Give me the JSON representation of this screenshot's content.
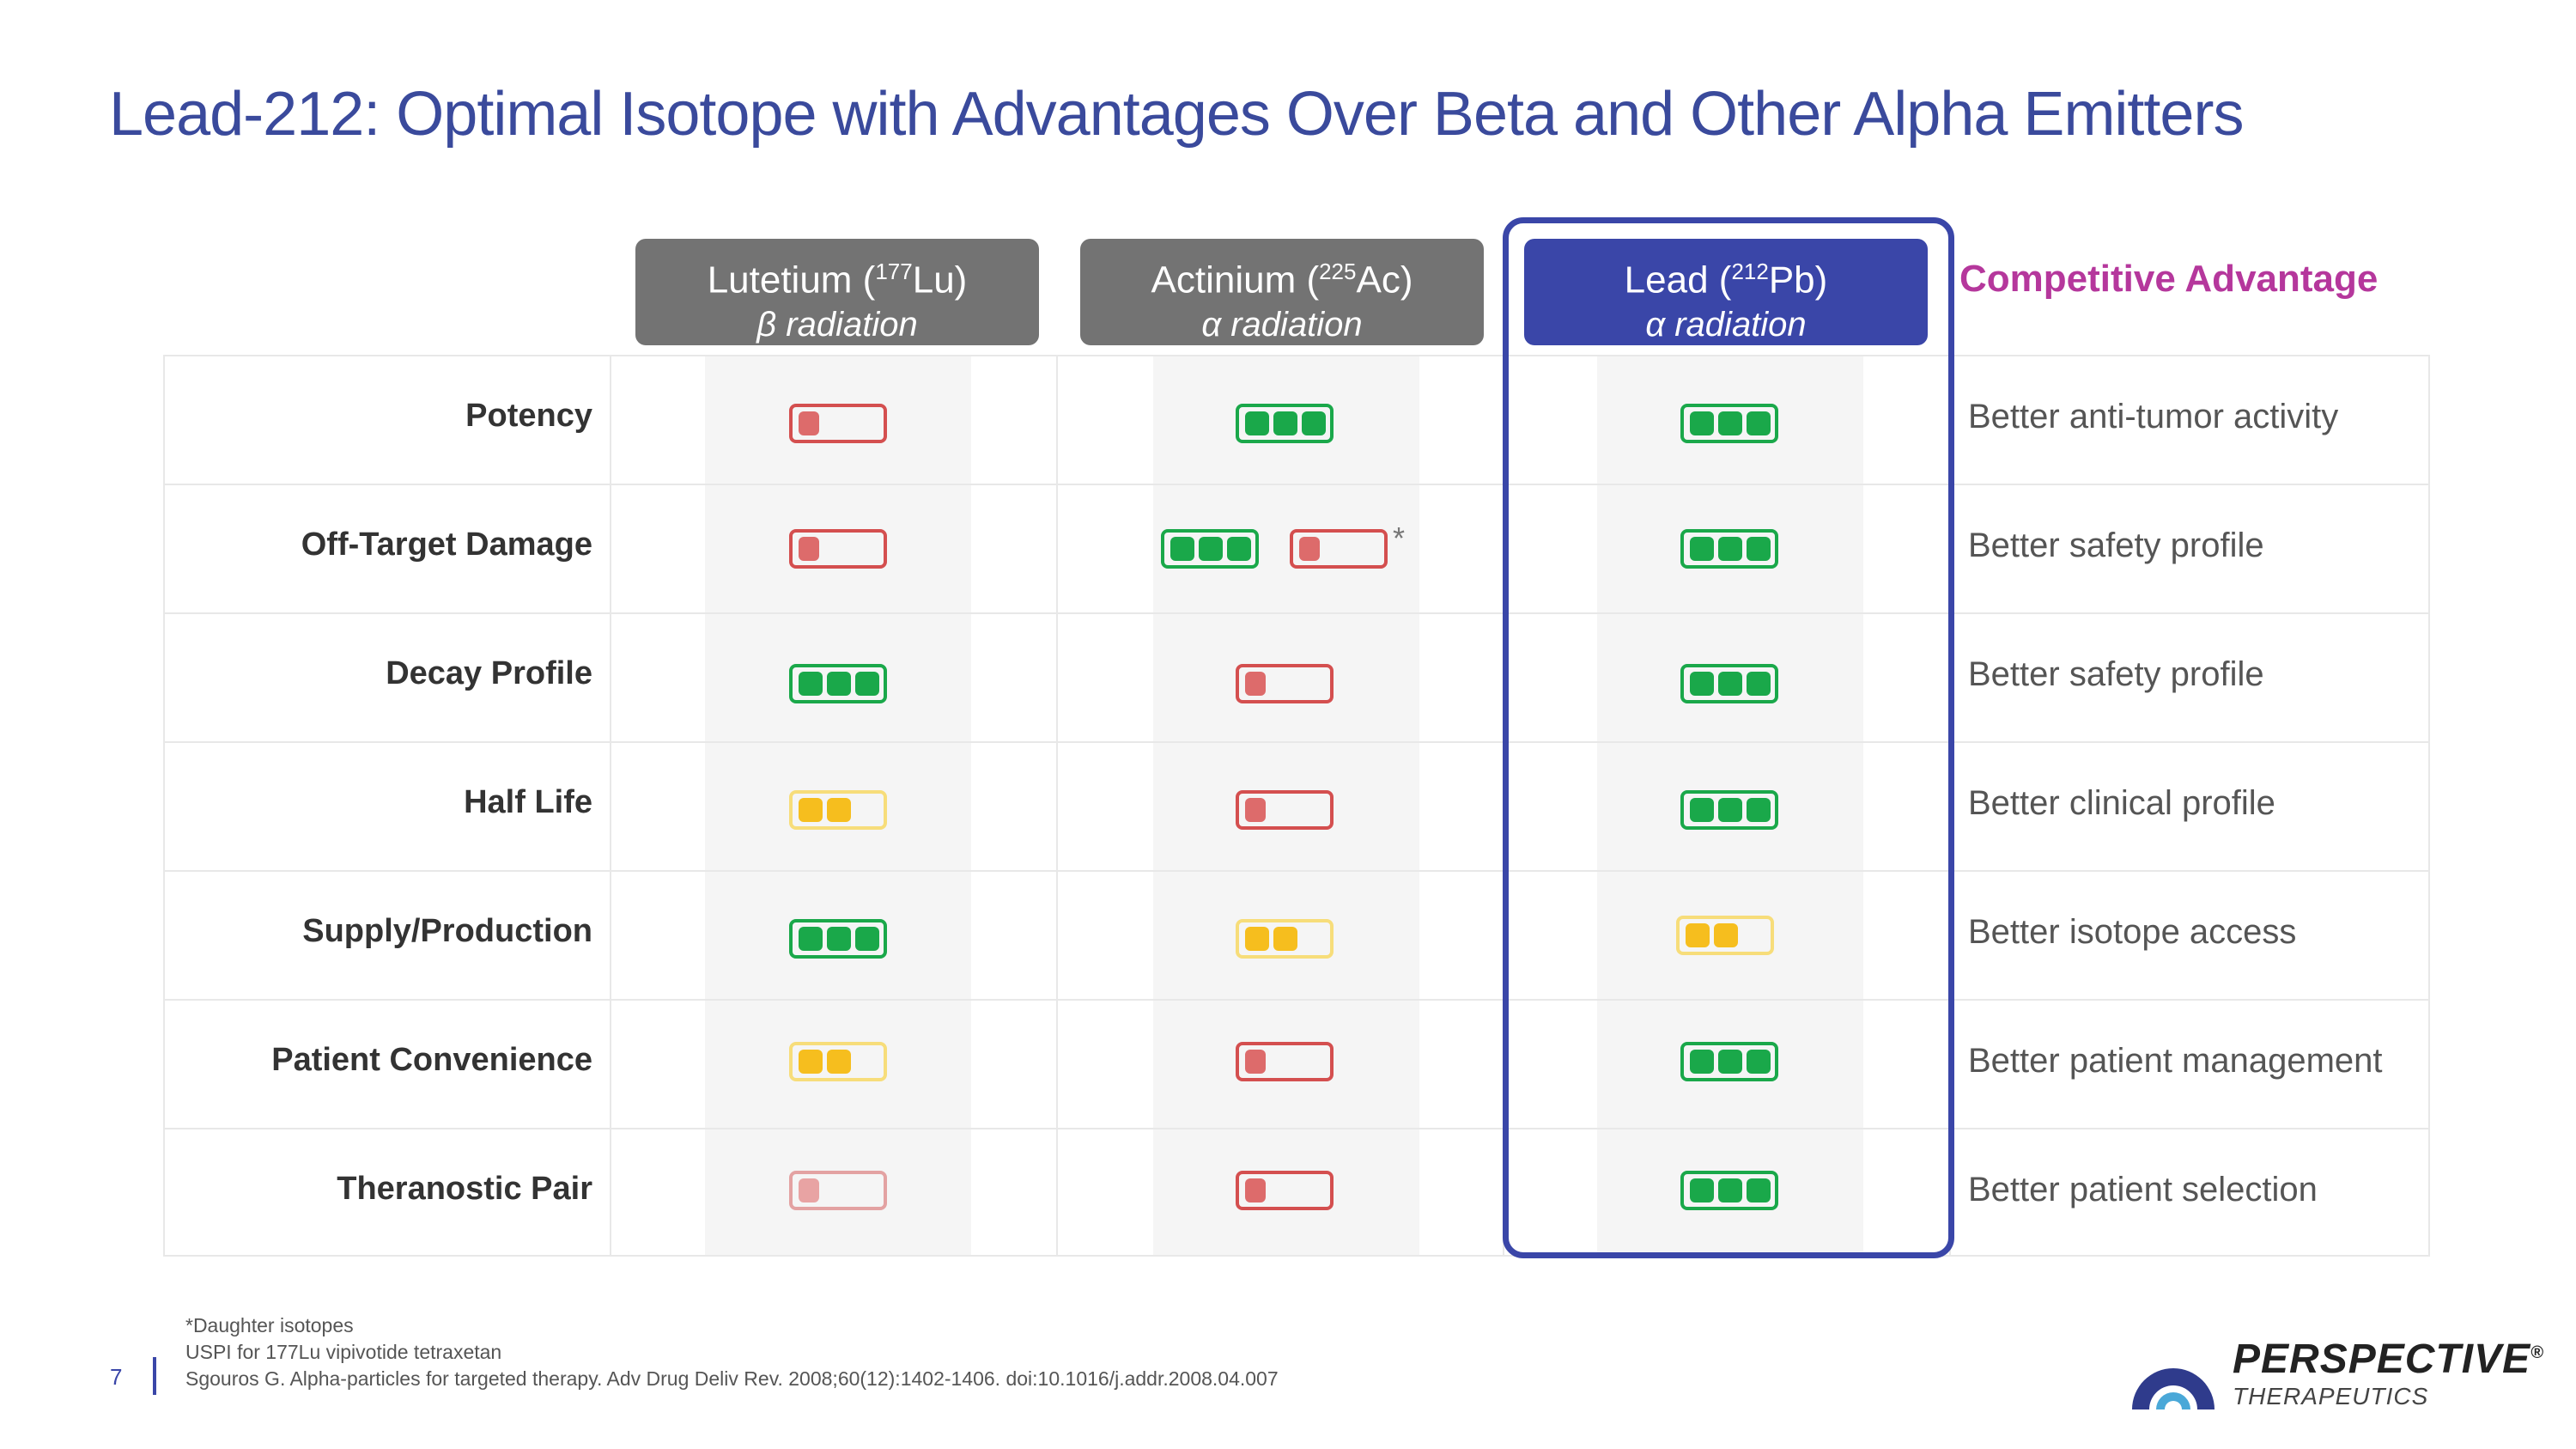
{
  "title": "Lead-212: Optimal Isotope with Advantages Over Beta and Other Alpha Emitters",
  "columns": [
    {
      "name_pre": "Lutetium (",
      "mass": "177",
      "symbol": "Lu)",
      "radiation": "β radiation"
    },
    {
      "name_pre": "Actinium (",
      "mass": "225",
      "symbol": "Ac)",
      "radiation": "α radiation"
    },
    {
      "name_pre": "Lead (",
      "mass": "212",
      "symbol": "Pb)",
      "radiation": "α radiation"
    }
  ],
  "advantage_header": "Competitive Advantage",
  "rows": [
    {
      "label": "Potency",
      "advantage": "Better anti-tumor activity",
      "ratings": [
        "red1",
        "green3",
        "green3"
      ]
    },
    {
      "label": "Off-Target Damage",
      "advantage": "Better safety profile",
      "ratings": [
        "red1",
        "green3 + red1 *",
        "green3"
      ]
    },
    {
      "label": "Decay Profile",
      "advantage": "Better safety profile",
      "ratings": [
        "green3",
        "red1",
        "green3"
      ]
    },
    {
      "label": "Half Life",
      "advantage": "Better clinical profile",
      "ratings": [
        "yellow2",
        "red1",
        "green3"
      ]
    },
    {
      "label": "Supply/Production",
      "advantage": "Better isotope access",
      "ratings": [
        "green3",
        "yellow2",
        "yellow2"
      ]
    },
    {
      "label": "Patient Convenience",
      "advantage": "Better patient management",
      "ratings": [
        "yellow2",
        "red1",
        "green3"
      ]
    },
    {
      "label": "Theranostic Pair",
      "advantage": "Better patient selection",
      "ratings": [
        "pink1",
        "red1",
        "green3"
      ]
    }
  ],
  "asterisk": "*",
  "footnotes": [
    "*Daughter isotopes",
    "USPI for 177Lu vipivotide tetraxetan",
    "Sgouros G. Alpha-particles for targeted therapy. Adv Drug Deliv Rev. 2008;60(12):1402-1406. doi:10.1016/j.addr.2008.04.007"
  ],
  "page_number": "7",
  "logo": {
    "name": "PERSPECTIVE",
    "reg": "®",
    "sub": "THERAPEUTICS"
  },
  "colors": {
    "title": "#3a4a9c",
    "accent": "#3a46a8",
    "advantage": "#b5379c",
    "green": "#1aa84a",
    "yellow": "#f6be1e",
    "red": "#dd6b6b"
  }
}
